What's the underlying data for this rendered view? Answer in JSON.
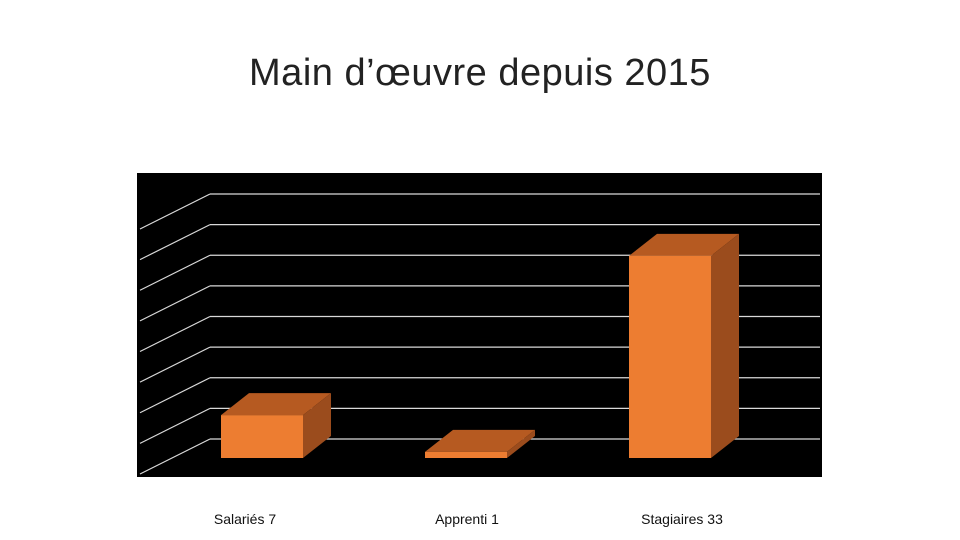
{
  "chart_data": {
    "type": "bar",
    "title": "Main d’œuvre depuis 2015",
    "categories": [
      "Salariés",
      "Apprenti",
      "Stagiaires"
    ],
    "values": [
      7,
      1,
      33
    ],
    "category_labels": [
      "Salariés 7",
      "Apprenti 1",
      "Stagiaires 33"
    ],
    "ylim": [
      0,
      40
    ],
    "grid": true,
    "three_d": true,
    "legend": "none",
    "colors": {
      "plot_background": "#000000",
      "gridline": "#d9d9d9",
      "bar_front": "#ed7d31",
      "bar_top": "#b65a21",
      "bar_side": "#9b4c1d"
    }
  }
}
